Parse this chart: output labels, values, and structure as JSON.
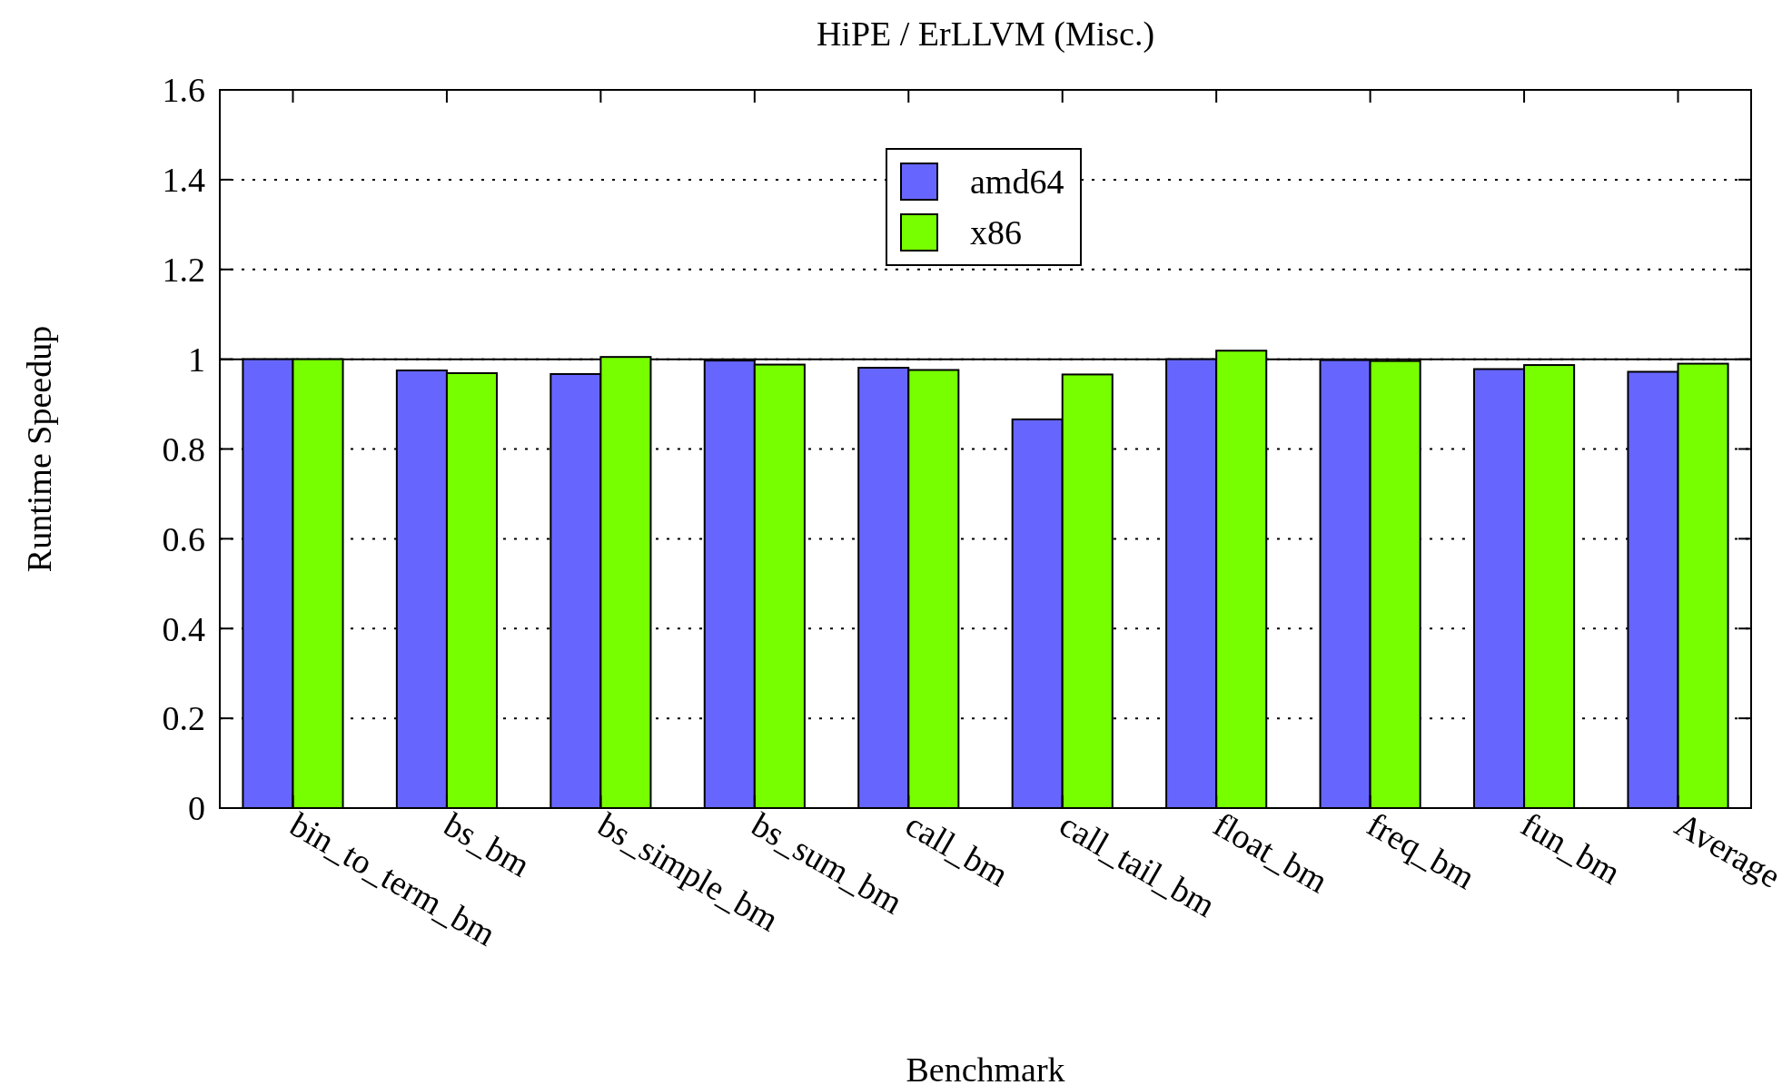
{
  "chart_data": {
    "type": "bar",
    "title": "HiPE / ErLLVM (Misc.)",
    "xlabel": "Benchmark",
    "ylabel": "Runtime Speedup",
    "categories": [
      "bin_to_term_bm",
      "bs_bm",
      "bs_simple_bm",
      "bs_sum_bm",
      "call_bm",
      "call_tail_bm",
      "float_bm",
      "freq_bm",
      "fun_bm",
      "Average"
    ],
    "series": [
      {
        "name": "amd64",
        "color": "#6666ff",
        "values": [
          1.0,
          0.975,
          0.967,
          0.997,
          0.981,
          0.866,
          1.0,
          0.998,
          0.978,
          0.972
        ]
      },
      {
        "name": "x86",
        "color": "#77ff00",
        "values": [
          1.0,
          0.969,
          1.005,
          0.988,
          0.976,
          0.966,
          1.019,
          0.996,
          0.987,
          0.99
        ]
      }
    ],
    "ylim": [
      0,
      1.6
    ],
    "yticks": [
      0,
      0.2,
      0.4,
      0.6,
      0.8,
      1,
      1.2,
      1.4,
      1.6
    ],
    "ref_lines": [
      {
        "axis": "y",
        "value": 1
      }
    ],
    "grid": "y",
    "legend": "top"
  }
}
